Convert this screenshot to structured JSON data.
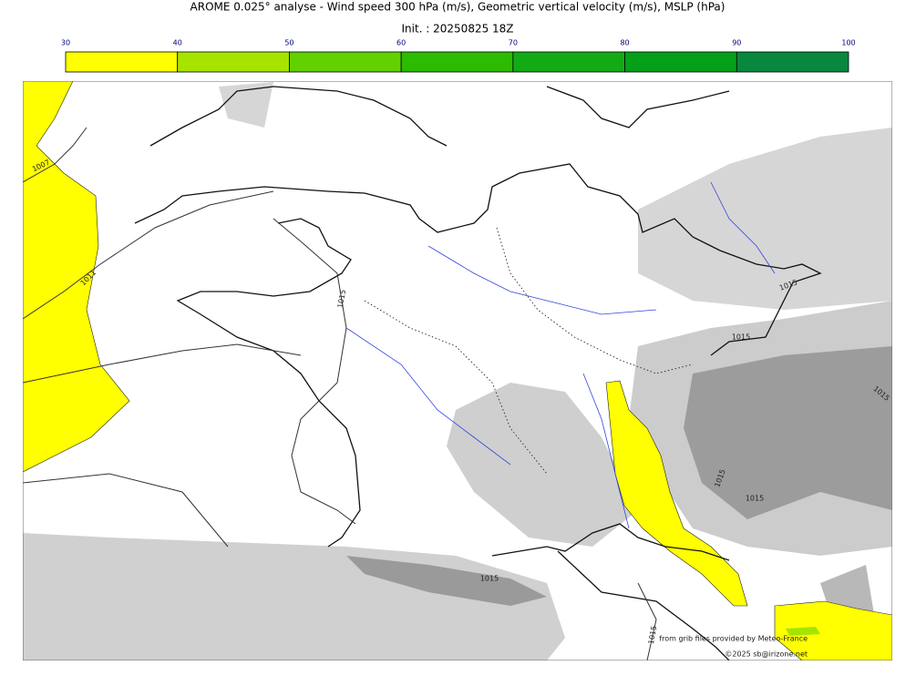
{
  "title": "AROME 0.025° analyse - Wind speed 300 hPa (m/s), Geometric vertical velocity (m/s), MSLP (hPa)",
  "subtitle": "Init. : 20250825 18Z",
  "colorbar": {
    "ticks": [
      30,
      40,
      50,
      60,
      70,
      80,
      90,
      100
    ],
    "colors": [
      "#ffff00",
      "#a6e400",
      "#63d000",
      "#2dbb00",
      "#12ab16",
      "#05a01a",
      "#08883f",
      "#087850"
    ]
  },
  "contour_labels": [
    1007,
    1011,
    1015,
    1015,
    1015,
    1015,
    1015,
    1015,
    1015,
    1015
  ],
  "credits": [
    "from grib files provided by Meteo-France",
    "©2025 sb@irizone.net"
  ]
}
